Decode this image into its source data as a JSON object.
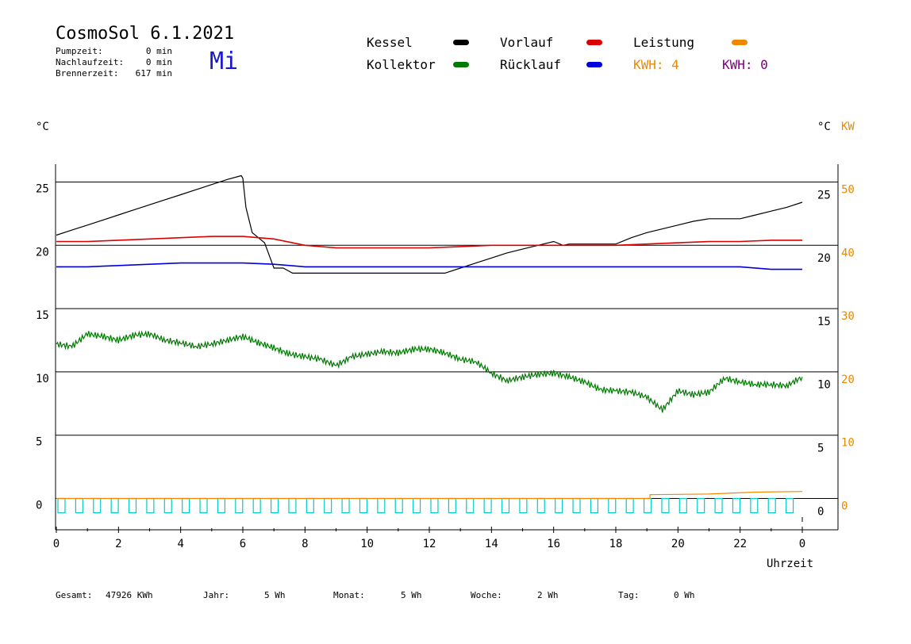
{
  "header": {
    "title": "CosmoSol 6.1.2021",
    "day": "Mi",
    "info": [
      {
        "label": "Pumpzeit:",
        "value": "0 min"
      },
      {
        "label": "Nachlaufzeit:",
        "value": "0 min"
      },
      {
        "label": "Brennerzeit:",
        "value": "617 min"
      }
    ]
  },
  "legend": {
    "kessel": "Kessel",
    "kollektor": "Kollektor",
    "vorlauf": "Vorlauf",
    "ruecklauf": "Rücklauf",
    "leistung": "Leistung",
    "kwh1": "KWH: 4",
    "kwh2": "KWH: 0"
  },
  "colors": {
    "kessel": "#000000",
    "kollektor": "#007a00",
    "vorlauf": "#dd0000",
    "ruecklauf": "#0000dd",
    "leistung": "#ee8800",
    "kwh2": "#800080",
    "pump": "#00cccc"
  },
  "footer": {
    "gesamt_label": "Gesamt:",
    "gesamt_value": "47926 KWh",
    "jahr_label": "Jahr:",
    "jahr_value": "5 Wh",
    "monat_label": "Monat:",
    "monat_value": "5 Wh",
    "woche_label": "Woche:",
    "woche_value": "2 Wh",
    "tag_label": "Tag:",
    "tag_value": "0 Wh"
  },
  "chart_data": {
    "type": "line",
    "y_left_label": "°C",
    "y_right_label": "°C",
    "y_right2_label": "KW",
    "xlabel": "Uhrzeit",
    "x_ticks": [
      "0",
      "2",
      "4",
      "6",
      "8",
      "10",
      "12",
      "14",
      "16",
      "18",
      "20",
      "22",
      "0"
    ],
    "y_ticks": [
      0,
      5,
      10,
      15,
      20,
      25
    ],
    "y2_ticks": [
      0,
      10,
      20,
      30,
      40,
      50
    ],
    "xlim": [
      0,
      24
    ],
    "ylim": [
      -1.2,
      27.5
    ],
    "grid": true,
    "series": [
      {
        "name": "Kessel",
        "key": "kessel",
        "x": [
          0,
          0.5,
          1,
          1.5,
          2,
          2.5,
          3,
          3.5,
          4,
          4.5,
          5,
          5.5,
          5.95,
          6.0,
          6.1,
          6.3,
          6.5,
          6.7,
          7.0,
          7.3,
          7.6,
          8,
          9,
          10,
          11,
          12,
          12.5,
          13,
          13.5,
          14,
          14.5,
          15,
          15.5,
          16,
          16.3,
          16.5,
          17,
          17.5,
          18,
          18.5,
          19,
          19.5,
          20,
          20.5,
          21,
          22,
          22.5,
          23,
          23.5,
          24
        ],
        "y": [
          20.8,
          21.2,
          21.6,
          22.0,
          22.4,
          22.8,
          23.2,
          23.6,
          24.0,
          24.4,
          24.8,
          25.2,
          25.5,
          25.3,
          23,
          21,
          20.6,
          20.2,
          18.2,
          18.2,
          17.8,
          17.8,
          17.8,
          17.8,
          17.8,
          17.8,
          17.8,
          18.2,
          18.6,
          19.0,
          19.4,
          19.7,
          20.0,
          20.3,
          20.0,
          20.1,
          20.1,
          20.1,
          20.1,
          20.6,
          21.0,
          21.3,
          21.6,
          21.9,
          22.1,
          22.1,
          22.4,
          22.7,
          23.0,
          23.4
        ]
      },
      {
        "name": "Vorlauf",
        "key": "vorlauf",
        "x": [
          0,
          1,
          2,
          3,
          4,
          5,
          6,
          7,
          8,
          9,
          10,
          11,
          12,
          13,
          14,
          15,
          16,
          17,
          18,
          19,
          20,
          21,
          22,
          23,
          24
        ],
        "y": [
          20.3,
          20.3,
          20.4,
          20.5,
          20.6,
          20.7,
          20.7,
          20.5,
          20.0,
          19.8,
          19.8,
          19.8,
          19.8,
          19.9,
          20.0,
          20.0,
          20.0,
          20.0,
          20.0,
          20.1,
          20.2,
          20.3,
          20.3,
          20.4,
          20.4
        ]
      },
      {
        "name": "Rücklauf",
        "key": "ruecklauf",
        "x": [
          0,
          1,
          2,
          3,
          4,
          5,
          6,
          7,
          8,
          9,
          10,
          11,
          12,
          13,
          14,
          15,
          16,
          17,
          18,
          19,
          20,
          21,
          22,
          23,
          24
        ],
        "y": [
          18.3,
          18.3,
          18.4,
          18.5,
          18.6,
          18.6,
          18.6,
          18.5,
          18.3,
          18.3,
          18.3,
          18.3,
          18.3,
          18.3,
          18.3,
          18.3,
          18.3,
          18.3,
          18.3,
          18.3,
          18.3,
          18.3,
          18.3,
          18.1,
          18.1
        ]
      },
      {
        "name": "Kollektor",
        "key": "kollektor",
        "x": [
          0,
          0.5,
          1,
          1.5,
          2,
          2.5,
          3,
          3.5,
          4,
          4.5,
          5,
          5.5,
          6,
          6.5,
          7,
          7.5,
          8,
          8.5,
          9,
          9.5,
          10,
          10.5,
          11,
          11.5,
          12,
          12.5,
          13,
          13.5,
          14,
          14.5,
          15,
          15.5,
          16,
          16.5,
          17,
          17.5,
          18,
          18.5,
          19,
          19.5,
          20,
          20.5,
          21,
          21.5,
          22,
          22.5,
          23,
          23.5,
          24
        ],
        "y": [
          12.2,
          12.0,
          13.0,
          12.8,
          12.5,
          12.9,
          13.0,
          12.5,
          12.3,
          12.0,
          12.2,
          12.5,
          12.8,
          12.3,
          11.9,
          11.4,
          11.2,
          11.0,
          10.5,
          11.2,
          11.4,
          11.6,
          11.5,
          11.8,
          11.8,
          11.5,
          11.0,
          10.8,
          9.9,
          9.3,
          9.6,
          9.8,
          9.9,
          9.6,
          9.2,
          8.6,
          8.5,
          8.4,
          8.0,
          7.0,
          8.5,
          8.2,
          8.4,
          9.5,
          9.2,
          9.0,
          9.0,
          8.9,
          9.6
        ]
      },
      {
        "name": "Leistung",
        "key": "leistung",
        "x": [
          0,
          19.1,
          19.1,
          21,
          22.5,
          24
        ],
        "y": [
          0,
          0,
          0.3,
          0.35,
          0.5,
          0.55
        ]
      }
    ],
    "pump_cycles": 84
  }
}
